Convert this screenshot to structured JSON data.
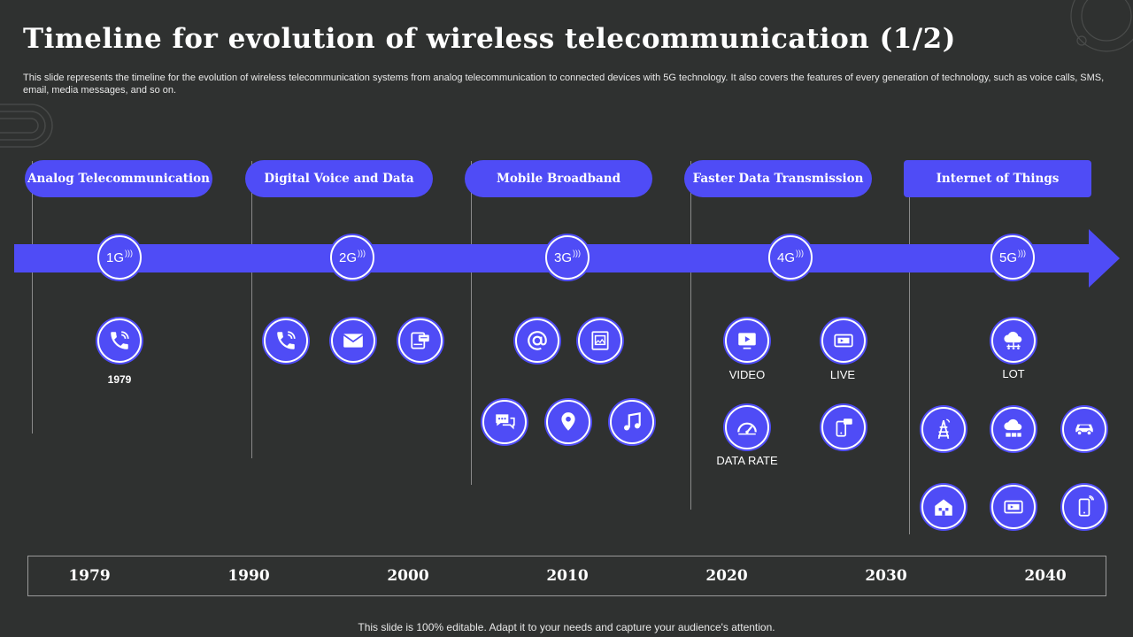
{
  "title": "Timeline for evolution of wireless telecommunication (1/2)",
  "subtitle": "This slide represents the timeline for the evolution of wireless telecommunication systems from analog telecommunication to connected devices with 5G technology. It also covers the features of every generation of technology, such as voice calls, SMS,  email, media messages, and so on.",
  "phases": [
    {
      "label": "Analog Telecommunication",
      "gen": "1G"
    },
    {
      "label": "Digital Voice and Data",
      "gen": "2G"
    },
    {
      "label": "Mobile Broadband",
      "gen": "3G"
    },
    {
      "label": "Faster Data Transmission",
      "gen": "4G"
    },
    {
      "label": "Internet of Things",
      "gen": "5G"
    }
  ],
  "icon_labels": {
    "phone_1979": "1979",
    "video": "VIDEO",
    "live": "LIVE",
    "data_rate": "DATA RATE",
    "lot": "LOT"
  },
  "years": [
    "1979",
    "1990",
    "2000",
    "2010",
    "2020",
    "2030",
    "2040"
  ],
  "footer": "This slide is 100% editable. Adapt it to your needs and capture your audience's attention.",
  "colors": {
    "accent": "#4f4cf6",
    "background": "#2f3130"
  }
}
